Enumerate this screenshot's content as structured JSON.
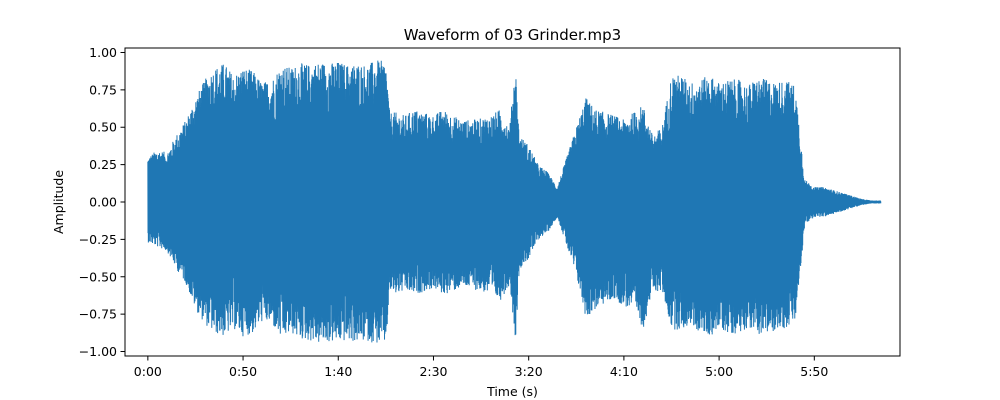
{
  "chart_data": {
    "type": "line",
    "title": "Waveform of 03 Grinder.mp3",
    "xlabel": "Time (s)",
    "ylabel": "Amplitude",
    "xlim": [
      -12,
      395
    ],
    "ylim": [
      -1.03,
      1.03
    ],
    "x_ticks": [
      0,
      50,
      100,
      150,
      200,
      250,
      300,
      350
    ],
    "x_tick_labels": [
      "0:00",
      "0:50",
      "1:40",
      "2:30",
      "3:20",
      "4:10",
      "5:00",
      "5:50"
    ],
    "y_ticks": [
      -1.0,
      -0.75,
      -0.5,
      -0.25,
      0.0,
      0.25,
      0.5,
      0.75,
      1.0
    ],
    "y_tick_labels": [
      "−1.00",
      "−0.75",
      "−0.50",
      "−0.25",
      "0.00",
      "0.25",
      "0.50",
      "0.75",
      "1.00"
    ],
    "grid": false,
    "series": [
      {
        "color": "#1f77b4",
        "envelope": {
          "x": [
            0,
            5,
            10,
            15,
            20,
            25,
            30,
            35,
            40,
            45,
            50,
            55,
            60,
            65,
            70,
            75,
            80,
            85,
            90,
            95,
            100,
            105,
            110,
            115,
            120,
            125,
            127,
            130,
            135,
            140,
            145,
            150,
            155,
            160,
            165,
            170,
            175,
            180,
            185,
            190,
            193,
            195,
            200,
            205,
            210,
            215,
            220,
            225,
            230,
            235,
            240,
            245,
            250,
            255,
            260,
            265,
            270,
            275,
            280,
            285,
            290,
            295,
            300,
            305,
            310,
            315,
            320,
            325,
            330,
            335,
            340,
            345,
            350,
            355,
            360,
            365,
            370,
            375,
            380,
            385
          ],
          "upper": [
            0.3,
            0.35,
            0.33,
            0.45,
            0.55,
            0.7,
            0.82,
            0.9,
            0.93,
            0.85,
            0.9,
            0.88,
            0.8,
            0.82,
            0.92,
            0.9,
            0.93,
            0.92,
            0.94,
            0.93,
            0.94,
            0.92,
            0.93,
            0.92,
            0.95,
            0.94,
            0.6,
            0.6,
            0.58,
            0.62,
            0.6,
            0.58,
            0.62,
            0.58,
            0.55,
            0.55,
            0.56,
            0.58,
            0.62,
            0.5,
            0.93,
            0.45,
            0.38,
            0.25,
            0.2,
            0.1,
            0.3,
            0.5,
            0.7,
            0.62,
            0.6,
            0.58,
            0.55,
            0.6,
            0.65,
            0.45,
            0.5,
            0.85,
            0.85,
            0.8,
            0.82,
            0.85,
            0.8,
            0.82,
            0.82,
            0.78,
            0.83,
            0.82,
            0.8,
            0.82,
            0.78,
            0.15,
            0.1,
            0.1,
            0.08,
            0.06,
            0.04,
            0.02,
            0.01,
            0.01
          ],
          "lower": [
            -0.27,
            -0.3,
            -0.33,
            -0.45,
            -0.55,
            -0.72,
            -0.82,
            -0.88,
            -0.9,
            -0.85,
            -0.9,
            -0.88,
            -0.8,
            -0.82,
            -0.92,
            -0.88,
            -0.92,
            -0.93,
            -0.95,
            -0.94,
            -0.94,
            -0.93,
            -0.94,
            -0.93,
            -0.95,
            -0.95,
            -0.6,
            -0.62,
            -0.6,
            -0.62,
            -0.6,
            -0.58,
            -0.62,
            -0.6,
            -0.57,
            -0.58,
            -0.6,
            -0.62,
            -0.66,
            -0.55,
            -0.93,
            -0.45,
            -0.38,
            -0.25,
            -0.2,
            -0.1,
            -0.3,
            -0.5,
            -0.78,
            -0.72,
            -0.68,
            -0.65,
            -0.7,
            -0.72,
            -0.85,
            -0.6,
            -0.6,
            -0.85,
            -0.86,
            -0.82,
            -0.88,
            -0.9,
            -0.85,
            -0.88,
            -0.88,
            -0.84,
            -0.88,
            -0.9,
            -0.85,
            -0.85,
            -0.8,
            -0.15,
            -0.1,
            -0.1,
            -0.08,
            -0.06,
            -0.04,
            -0.02,
            -0.01,
            -0.01
          ]
        }
      }
    ]
  }
}
